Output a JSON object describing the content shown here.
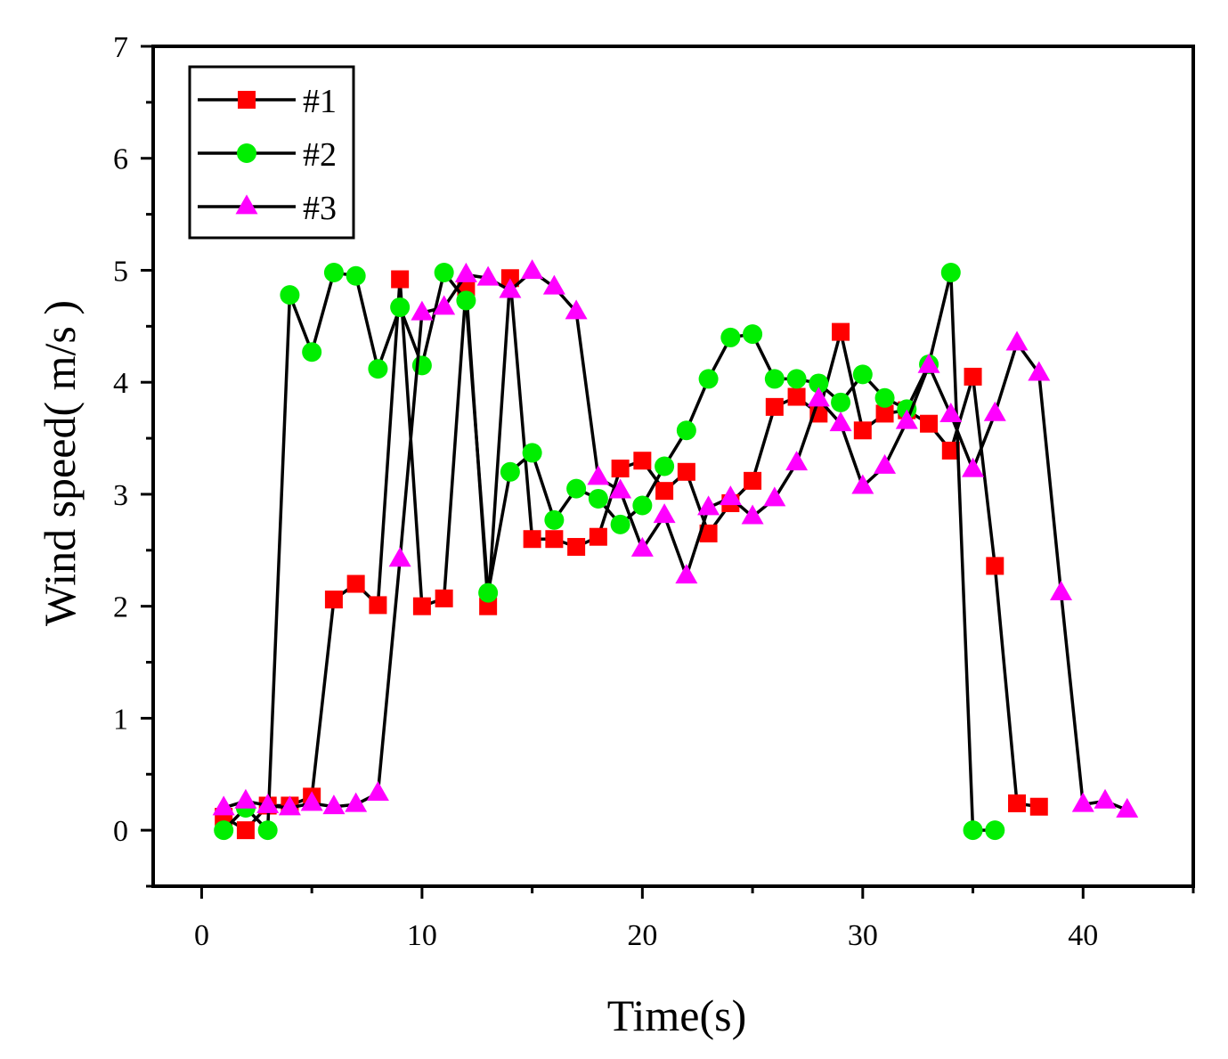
{
  "chart_data": {
    "type": "line",
    "title": "",
    "xlabel": "Time(s)",
    "ylabel": "Wind speed( m/s )",
    "xlim": [
      -2.2,
      45
    ],
    "ylim": [
      -0.5,
      7
    ],
    "xticks": [
      0,
      10,
      20,
      30,
      40
    ],
    "yticks": [
      0,
      1,
      2,
      3,
      4,
      5,
      6,
      7
    ],
    "grid": false,
    "legend_position": "top-left",
    "series": [
      {
        "name": "#1",
        "color": "#ff0000",
        "marker": "square",
        "x": [
          1,
          2,
          3,
          4,
          5,
          6,
          7,
          8,
          9,
          10,
          11,
          12,
          13,
          14,
          15,
          16,
          17,
          18,
          19,
          20,
          21,
          22,
          23,
          24,
          25,
          26,
          27,
          28,
          29,
          30,
          31,
          32,
          33,
          34,
          35,
          36,
          37,
          38
        ],
        "values": [
          0.12,
          0.0,
          0.22,
          0.22,
          0.3,
          2.06,
          2.2,
          2.01,
          4.92,
          2.0,
          2.07,
          4.85,
          2.0,
          4.93,
          2.6,
          2.6,
          2.53,
          2.62,
          3.23,
          3.3,
          3.03,
          3.2,
          2.65,
          2.92,
          3.12,
          3.78,
          3.87,
          3.72,
          4.45,
          3.57,
          3.72,
          3.75,
          3.63,
          3.39,
          4.05,
          2.36,
          0.24,
          0.21
        ]
      },
      {
        "name": "#2",
        "color": "#00ee00",
        "marker": "circle",
        "x": [
          1,
          2,
          3,
          4,
          5,
          6,
          7,
          8,
          9,
          10,
          11,
          12,
          13,
          14,
          15,
          16,
          17,
          18,
          19,
          20,
          21,
          22,
          23,
          24,
          25,
          26,
          27,
          28,
          29,
          30,
          31,
          32,
          33,
          34,
          35,
          36
        ],
        "values": [
          0.0,
          0.2,
          0.0,
          4.78,
          4.27,
          4.98,
          4.95,
          4.12,
          4.67,
          4.15,
          4.98,
          4.73,
          2.12,
          3.2,
          3.37,
          2.77,
          3.05,
          2.96,
          2.73,
          2.9,
          3.25,
          3.57,
          4.03,
          4.4,
          4.43,
          4.03,
          4.03,
          3.99,
          3.82,
          4.07,
          3.86,
          3.76,
          4.16,
          4.98,
          0.0,
          0.0
        ]
      },
      {
        "name": "#3",
        "color": "#ff00ff",
        "marker": "triangle",
        "x": [
          1,
          2,
          3,
          4,
          5,
          6,
          7,
          8,
          9,
          10,
          11,
          12,
          13,
          14,
          15,
          16,
          17,
          18,
          19,
          20,
          21,
          22,
          23,
          24,
          25,
          26,
          27,
          28,
          29,
          30,
          31,
          32,
          33,
          34,
          35,
          36,
          37,
          38,
          39,
          40,
          41,
          42
        ],
        "values": [
          0.2,
          0.26,
          0.22,
          0.2,
          0.24,
          0.21,
          0.23,
          0.33,
          2.42,
          4.62,
          4.67,
          4.96,
          4.93,
          4.82,
          4.99,
          4.85,
          4.63,
          3.15,
          3.03,
          2.51,
          2.81,
          2.27,
          2.88,
          2.97,
          2.8,
          2.96,
          3.28,
          3.85,
          3.63,
          3.07,
          3.25,
          3.65,
          4.15,
          3.71,
          3.22,
          3.72,
          4.35,
          4.08,
          2.12,
          0.23,
          0.26,
          0.18
        ]
      }
    ]
  }
}
